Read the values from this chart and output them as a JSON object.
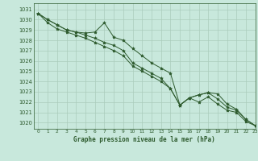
{
  "title": "Graphe pression niveau de la mer (hPa)",
  "bg_color": "#c8e8dc",
  "grid_color": "#aaccbb",
  "line_color": "#2d5a2d",
  "xlim": [
    -0.5,
    23
  ],
  "ylim": [
    1019.4,
    1031.6
  ],
  "xticks": [
    0,
    1,
    2,
    3,
    4,
    5,
    6,
    7,
    8,
    9,
    10,
    11,
    12,
    13,
    14,
    15,
    16,
    17,
    18,
    19,
    20,
    21,
    22,
    23
  ],
  "yticks": [
    1020,
    1021,
    1022,
    1023,
    1024,
    1025,
    1026,
    1027,
    1028,
    1029,
    1030,
    1031
  ],
  "hours": [
    0,
    1,
    2,
    3,
    4,
    5,
    6,
    7,
    8,
    9,
    10,
    11,
    12,
    13,
    14,
    15,
    16,
    17,
    18,
    19,
    20,
    21,
    22,
    23
  ],
  "series1": [
    1030.6,
    1030.0,
    1029.5,
    1029.0,
    1028.8,
    1028.7,
    1028.8,
    1029.7,
    1028.3,
    1028.0,
    1027.2,
    1026.5,
    1025.8,
    1025.3,
    1024.8,
    1021.7,
    1022.4,
    1022.7,
    1022.9,
    1022.8,
    1021.8,
    1021.3,
    1020.3,
    1019.7
  ],
  "series2": [
    1030.6,
    1030.0,
    1029.5,
    1029.0,
    1028.8,
    1028.5,
    1028.2,
    1027.8,
    1027.5,
    1027.0,
    1025.8,
    1025.3,
    1024.8,
    1024.3,
    1023.3,
    1021.7,
    1022.4,
    1022.7,
    1022.9,
    1022.3,
    1021.5,
    1021.2,
    1020.3,
    1019.7
  ],
  "series3": [
    1030.6,
    1029.7,
    1029.1,
    1028.8,
    1028.5,
    1028.2,
    1027.8,
    1027.4,
    1027.0,
    1026.5,
    1025.5,
    1025.0,
    1024.5,
    1024.0,
    1023.3,
    1021.7,
    1022.4,
    1022.0,
    1022.5,
    1021.8,
    1021.2,
    1021.0,
    1020.1,
    1019.7
  ]
}
